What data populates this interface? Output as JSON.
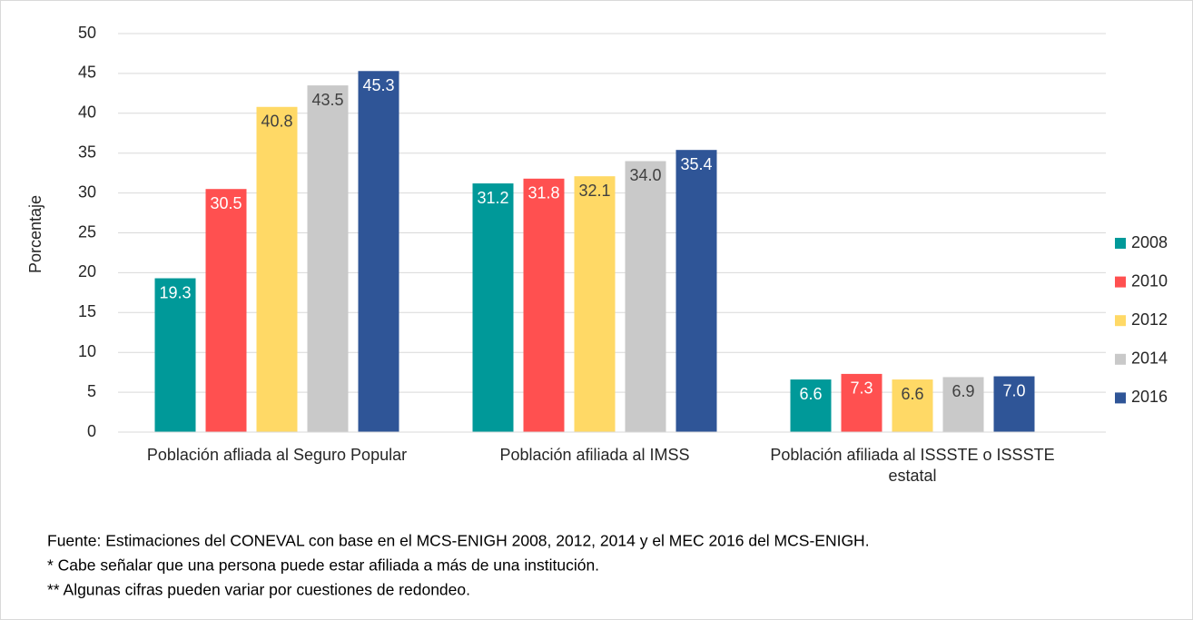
{
  "chart_data": {
    "type": "bar",
    "y_label": "Porcentaje",
    "categories": [
      "Población afliada al Seguro Popular",
      "Población afiliada al IMSS",
      "Población afiliada al ISSSTE o ISSSTE estatal"
    ],
    "series": [
      {
        "name": "2008",
        "color": "#009999",
        "label_color": "#ffffff",
        "values": [
          19.3,
          31.2,
          6.6
        ],
        "value_labels": [
          "19.3",
          "31.2",
          "6.6"
        ]
      },
      {
        "name": "2010",
        "color": "#ff5050",
        "label_color": "#ffffff",
        "values": [
          30.5,
          31.8,
          7.3
        ],
        "value_labels": [
          "30.5",
          "31.8",
          "7.3"
        ]
      },
      {
        "name": "2012",
        "color": "#ffd966",
        "label_color": "#404040",
        "values": [
          40.8,
          32.1,
          6.6
        ],
        "value_labels": [
          "40.8",
          "32.1",
          "6.6"
        ]
      },
      {
        "name": "2014",
        "color": "#c9c9c9",
        "label_color": "#404040",
        "values": [
          43.5,
          34.0,
          6.9
        ],
        "value_labels": [
          "43.5",
          "34.0",
          "6.9"
        ]
      },
      {
        "name": "2016",
        "color": "#2f5597",
        "label_color": "#ffffff",
        "values": [
          45.3,
          35.4,
          7.0
        ],
        "value_labels": [
          "45.3",
          "35.4",
          "7.0"
        ]
      }
    ],
    "ylim": [
      0,
      50
    ],
    "yticks": [
      0,
      5,
      10,
      15,
      20,
      25,
      30,
      35,
      40,
      45,
      50
    ],
    "grid": true,
    "legend": "right",
    "notes": [
      "Fuente: Estimaciones del CONEVAL con base en el MCS-ENIGH 2008, 2012, 2014 y el MEC 2016 del MCS-ENIGH.",
      "* Cabe señalar que una persona puede estar afiliada a más de una institución.",
      "** Algunas cifras pueden variar por cuestiones de redondeo."
    ]
  }
}
